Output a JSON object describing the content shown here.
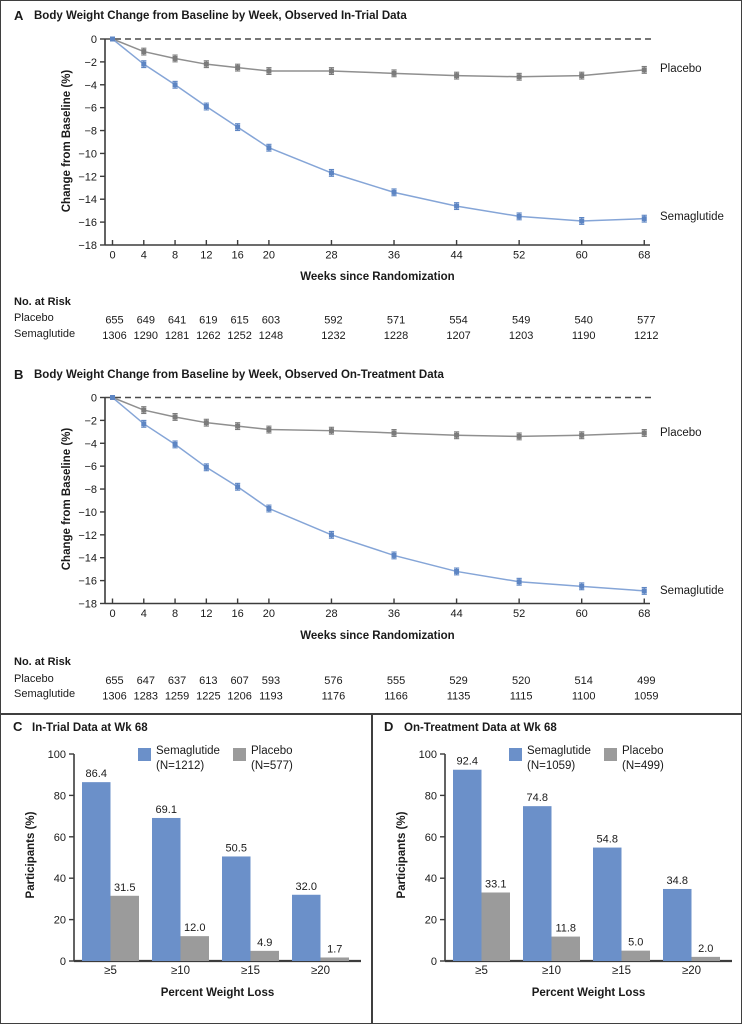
{
  "colors": {
    "semaglutide_bar": "#6b90c9",
    "placebo_bar": "#9b9b9b",
    "semaglutide_line": "#85a5d7",
    "semaglutide_marker": "#5d85c3",
    "placebo_line": "#8f8f8f",
    "placebo_marker": "#7b7b7b",
    "axis": "#3c3c3c",
    "dashed_reference": "#4a4a4a"
  },
  "chart_data": [
    {
      "id": "A",
      "type": "line",
      "panel_label": "A",
      "title": "Body Weight Change from Baseline by Week, Observed In-Trial Data",
      "xlabel": "Weeks since Randomization",
      "ylabel": "Change from Baseline (%)",
      "x": [
        0,
        4,
        8,
        12,
        16,
        20,
        28,
        36,
        44,
        52,
        60,
        68
      ],
      "ylim": [
        -18,
        0
      ],
      "yticks": [
        0,
        -2,
        -4,
        -6,
        -8,
        -10,
        -12,
        -14,
        -16,
        -18
      ],
      "zero_reference_line": "dashed",
      "legend_position": "right-of-line-ends",
      "series": [
        {
          "name": "Placebo",
          "line_color": "#8f8f8f",
          "marker_color": "#7b7b7b",
          "values": [
            0,
            -1.1,
            -1.7,
            -2.2,
            -2.5,
            -2.8,
            -2.8,
            -3.0,
            -3.2,
            -3.3,
            -3.2,
            -2.7
          ]
        },
        {
          "name": "Semaglutide",
          "line_color": "#85a5d7",
          "marker_color": "#5d85c3",
          "values": [
            0,
            -2.2,
            -4.0,
            -5.9,
            -7.7,
            -9.5,
            -11.7,
            -13.4,
            -14.6,
            -15.5,
            -15.9,
            -15.7
          ]
        }
      ],
      "no_at_risk": {
        "title": "No. at Risk",
        "rows": [
          {
            "label": "Placebo",
            "values": [
              655,
              649,
              641,
              619,
              615,
              603,
              592,
              571,
              554,
              549,
              540,
              577
            ]
          },
          {
            "label": "Semaglutide",
            "values": [
              1306,
              1290,
              1281,
              1262,
              1252,
              1248,
              1232,
              1228,
              1207,
              1203,
              1190,
              1212
            ]
          }
        ]
      }
    },
    {
      "id": "B",
      "type": "line",
      "panel_label": "B",
      "title": "Body Weight Change from Baseline by Week, Observed On-Treatment Data",
      "xlabel": "Weeks since Randomization",
      "ylabel": "Change from Baseline (%)",
      "x": [
        0,
        4,
        8,
        12,
        16,
        20,
        28,
        36,
        44,
        52,
        60,
        68
      ],
      "ylim": [
        -18,
        0
      ],
      "yticks": [
        0,
        -2,
        -4,
        -6,
        -8,
        -10,
        -12,
        -14,
        -16,
        -18
      ],
      "zero_reference_line": "dashed",
      "legend_position": "right-of-line-ends",
      "series": [
        {
          "name": "Placebo",
          "line_color": "#8f8f8f",
          "marker_color": "#7b7b7b",
          "values": [
            0,
            -1.1,
            -1.7,
            -2.2,
            -2.5,
            -2.8,
            -2.9,
            -3.1,
            -3.3,
            -3.4,
            -3.3,
            -3.1
          ]
        },
        {
          "name": "Semaglutide",
          "line_color": "#85a5d7",
          "marker_color": "#5d85c3",
          "values": [
            0,
            -2.3,
            -4.1,
            -6.1,
            -7.8,
            -9.7,
            -12.0,
            -13.8,
            -15.2,
            -16.1,
            -16.5,
            -16.9
          ]
        }
      ],
      "no_at_risk": {
        "title": "No. at Risk",
        "rows": [
          {
            "label": "Placebo",
            "values": [
              655,
              647,
              637,
              613,
              607,
              593,
              576,
              555,
              529,
              520,
              514,
              499
            ]
          },
          {
            "label": "Semaglutide",
            "values": [
              1306,
              1283,
              1259,
              1225,
              1206,
              1193,
              1176,
              1166,
              1135,
              1115,
              1100,
              1059
            ]
          }
        ]
      }
    },
    {
      "id": "C",
      "type": "bar",
      "panel_label": "C",
      "title": "In-Trial Data at Wk 68",
      "xlabel": "Percent Weight Loss",
      "ylabel": "Participants (%)",
      "categories": [
        "≥5",
        "≥10",
        "≥15",
        "≥20"
      ],
      "ylim": [
        0,
        100
      ],
      "yticks": [
        0,
        20,
        40,
        60,
        80,
        100
      ],
      "legend_position": "top",
      "series": [
        {
          "name": "Semaglutide",
          "n_label": "(N=1212)",
          "color": "#6b90c9",
          "values": [
            86.4,
            69.1,
            50.5,
            32.0
          ]
        },
        {
          "name": "Placebo",
          "n_label": "(N=577)",
          "color": "#9b9b9b",
          "values": [
            31.5,
            12.0,
            4.9,
            1.7
          ]
        }
      ]
    },
    {
      "id": "D",
      "type": "bar",
      "panel_label": "D",
      "title": "On-Treatment Data at Wk 68",
      "xlabel": "Percent Weight Loss",
      "ylabel": "Participants (%)",
      "categories": [
        "≥5",
        "≥10",
        "≥15",
        "≥20"
      ],
      "ylim": [
        0,
        100
      ],
      "yticks": [
        0,
        20,
        40,
        60,
        80,
        100
      ],
      "legend_position": "top",
      "series": [
        {
          "name": "Semaglutide",
          "n_label": "(N=1059)",
          "color": "#6b90c9",
          "values": [
            92.4,
            74.8,
            54.8,
            34.8
          ]
        },
        {
          "name": "Placebo",
          "n_label": "(N=499)",
          "color": "#9b9b9b",
          "values": [
            33.1,
            11.8,
            5.0,
            2.0
          ]
        }
      ]
    }
  ]
}
